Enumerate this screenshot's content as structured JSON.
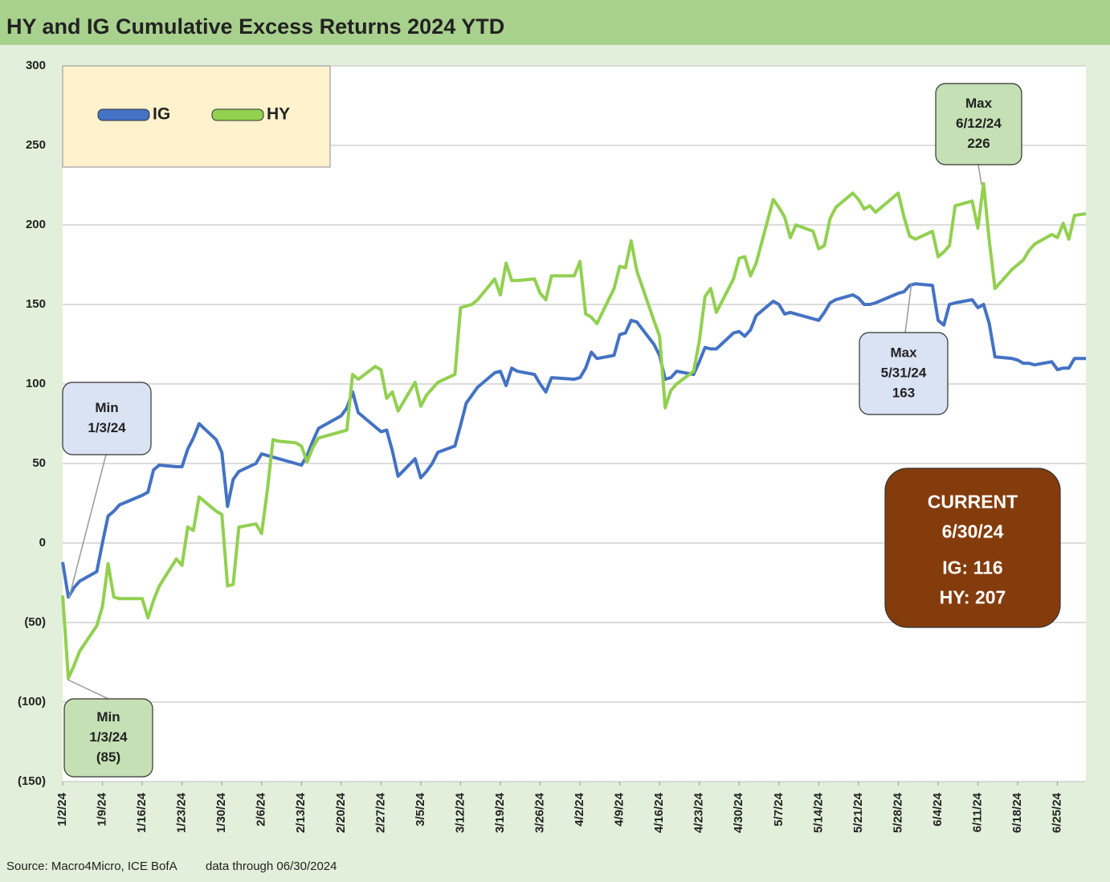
{
  "chart_data": {
    "type": "line",
    "title": "HY and IG Cumulative Excess Returns 2024 YTD",
    "source": "Source: Macro4Micro, ICE BofA",
    "note": "data through 06/30/2024",
    "x": [
      "1/2/24",
      "1/3/24",
      "1/4/24",
      "1/5/24",
      "1/8/24",
      "1/9/24",
      "1/10/24",
      "1/11/24",
      "1/12/24",
      "1/16/24",
      "1/17/24",
      "1/18/24",
      "1/19/24",
      "1/22/24",
      "1/23/24",
      "1/24/24",
      "1/25/24",
      "1/26/24",
      "1/29/24",
      "1/30/24",
      "1/31/24",
      "2/1/24",
      "2/2/24",
      "2/5/24",
      "2/6/24",
      "2/7/24",
      "2/8/24",
      "2/9/24",
      "2/12/24",
      "2/13/24",
      "2/14/24",
      "2/15/24",
      "2/16/24",
      "2/20/24",
      "2/21/24",
      "2/22/24",
      "2/23/24",
      "2/26/24",
      "2/27/24",
      "2/28/24",
      "2/29/24",
      "3/1/24",
      "3/4/24",
      "3/5/24",
      "3/6/24",
      "3/7/24",
      "3/8/24",
      "3/11/24",
      "3/12/24",
      "3/13/24",
      "3/14/24",
      "3/15/24",
      "3/18/24",
      "3/19/24",
      "3/20/24",
      "3/21/24",
      "3/22/24",
      "3/25/24",
      "3/26/24",
      "3/27/24",
      "3/28/24",
      "4/1/24",
      "4/2/24",
      "4/3/24",
      "4/4/24",
      "4/5/24",
      "4/8/24",
      "4/9/24",
      "4/10/24",
      "4/11/24",
      "4/12/24",
      "4/15/24",
      "4/16/24",
      "4/17/24",
      "4/18/24",
      "4/19/24",
      "4/22/24",
      "4/23/24",
      "4/24/24",
      "4/25/24",
      "4/26/24",
      "4/29/24",
      "4/30/24",
      "5/1/24",
      "5/2/24",
      "5/3/24",
      "5/6/24",
      "5/7/24",
      "5/8/24",
      "5/9/24",
      "5/10/24",
      "5/13/24",
      "5/14/24",
      "5/15/24",
      "5/16/24",
      "5/17/24",
      "5/20/24",
      "5/21/24",
      "5/22/24",
      "5/23/24",
      "5/24/24",
      "5/28/24",
      "5/29/24",
      "5/30/24",
      "5/31/24",
      "6/3/24",
      "6/4/24",
      "6/5/24",
      "6/6/24",
      "6/7/24",
      "6/10/24",
      "6/11/24",
      "6/12/24",
      "6/13/24",
      "6/14/24",
      "6/17/24",
      "6/18/24",
      "6/19/24",
      "6/20/24",
      "6/21/24",
      "6/24/24",
      "6/25/24",
      "6/26/24",
      "6/27/24",
      "6/28/24",
      "6/30/24"
    ],
    "series": [
      {
        "name": "IG",
        "color": "#4472c4",
        "values": [
          -12,
          -34,
          -28,
          -24,
          -18,
          0,
          17,
          20,
          24,
          30,
          32,
          46,
          49,
          48,
          48,
          59,
          66,
          75,
          65,
          57,
          23,
          40,
          45,
          50,
          56,
          55,
          54,
          53,
          50,
          49,
          55,
          64,
          72,
          80,
          85,
          95,
          82,
          73,
          70,
          71,
          58,
          42,
          53,
          41,
          45,
          50,
          57,
          61,
          74,
          88,
          93,
          98,
          107,
          108,
          99,
          110,
          108,
          106,
          100,
          95,
          104,
          103,
          104,
          110,
          120,
          116,
          118,
          131,
          132,
          140,
          139,
          125,
          118,
          103,
          104,
          108,
          106,
          114,
          123,
          122,
          122,
          132,
          133,
          130,
          134,
          143,
          152,
          150,
          144,
          145,
          144,
          141,
          140,
          145,
          151,
          153,
          156,
          154,
          150,
          150,
          151,
          157,
          158,
          162,
          163,
          162,
          140,
          137,
          150,
          151,
          153,
          148,
          150,
          138,
          117,
          116,
          115,
          113,
          113,
          112,
          114,
          109,
          110,
          110,
          116,
          116
        ]
      },
      {
        "name": "HY",
        "color": "#92d050",
        "values": [
          -33,
          -85,
          -77,
          -68,
          -52,
          -40,
          -13,
          -34,
          -35,
          -35,
          -47,
          -36,
          -27,
          -10,
          -14,
          10,
          8,
          29,
          20,
          18,
          -27,
          -26,
          10,
          12,
          6,
          33,
          65,
          64,
          63,
          61,
          51,
          60,
          66,
          70,
          71,
          106,
          103,
          111,
          109,
          91,
          95,
          83,
          101,
          86,
          93,
          97,
          101,
          106,
          148,
          149,
          150,
          153,
          166,
          156,
          176,
          165,
          165,
          166,
          157,
          153,
          168,
          168,
          177,
          144,
          142,
          138,
          160,
          174,
          173,
          190,
          171,
          140,
          130,
          85,
          96,
          100,
          108,
          127,
          155,
          160,
          145,
          166,
          179,
          180,
          168,
          176,
          216,
          211,
          205,
          192,
          200,
          196,
          185,
          187,
          204,
          211,
          220,
          216,
          210,
          212,
          208,
          220,
          205,
          193,
          191,
          196,
          180,
          183,
          187,
          212,
          215,
          198,
          226,
          190,
          160,
          172,
          175,
          178,
          184,
          188,
          194,
          192,
          201,
          191,
          206,
          207
        ]
      }
    ],
    "xlim": [
      "1/2/24",
      "6/30/24"
    ],
    "xticks": [
      "1/2/24",
      "1/9/24",
      "1/16/24",
      "1/23/24",
      "1/30/24",
      "2/6/24",
      "2/13/24",
      "2/20/24",
      "2/27/24",
      "3/5/24",
      "3/12/24",
      "3/19/24",
      "3/26/24",
      "4/2/24",
      "4/9/24",
      "4/16/24",
      "4/23/24",
      "4/30/24",
      "5/7/24",
      "5/14/24",
      "5/21/24",
      "5/28/24",
      "6/4/24",
      "6/11/24",
      "6/18/24",
      "6/25/24"
    ],
    "ylim": [
      -150,
      300
    ],
    "yticks": [
      {
        "value": -150,
        "label": "(150)"
      },
      {
        "value": -100,
        "label": "(100)"
      },
      {
        "value": -50,
        "label": "(50)"
      },
      0,
      50,
      100,
      150,
      200,
      250,
      300
    ],
    "grid": true,
    "legend": "top-left",
    "annotations": [
      {
        "lines": [
          "Min",
          "1/3/24"
        ]
      },
      {
        "lines": [
          "Min",
          "1/3/24",
          "(85)"
        ]
      },
      {
        "lines": [
          "Max",
          "5/31/24",
          "163"
        ]
      },
      {
        "lines": [
          "Max",
          "6/12/24",
          "226"
        ]
      },
      {
        "lines": [
          "CURRENT",
          "6/30/24",
          "IG: 116",
          "HY: 207"
        ]
      }
    ]
  }
}
